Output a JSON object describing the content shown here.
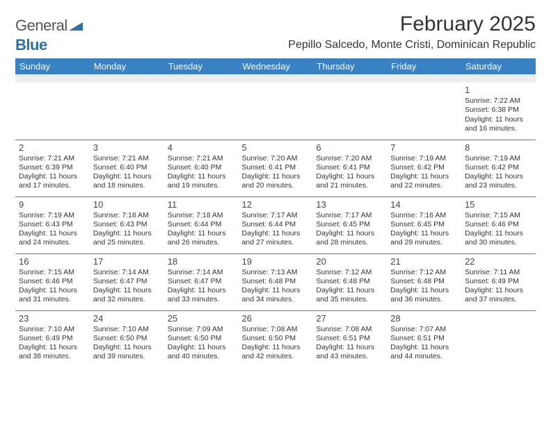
{
  "logo": {
    "word1": "General",
    "word2": "Blue"
  },
  "title": "February 2025",
  "location": "Pepillo Salcedo, Monte Cristi, Dominican Republic",
  "header_bg": "#3a81c4",
  "header_fg": "#ffffff",
  "rule_color": "#5a7a99",
  "blank_bg": "#eeeeee",
  "days": [
    "Sunday",
    "Monday",
    "Tuesday",
    "Wednesday",
    "Thursday",
    "Friday",
    "Saturday"
  ],
  "weeks": [
    [
      null,
      null,
      null,
      null,
      null,
      null,
      {
        "n": "1",
        "sr": "Sunrise: 7:22 AM",
        "ss": "Sunset: 6:38 PM",
        "dl": "Daylight: 11 hours and 16 minutes."
      }
    ],
    [
      {
        "n": "2",
        "sr": "Sunrise: 7:21 AM",
        "ss": "Sunset: 6:39 PM",
        "dl": "Daylight: 11 hours and 17 minutes."
      },
      {
        "n": "3",
        "sr": "Sunrise: 7:21 AM",
        "ss": "Sunset: 6:40 PM",
        "dl": "Daylight: 11 hours and 18 minutes."
      },
      {
        "n": "4",
        "sr": "Sunrise: 7:21 AM",
        "ss": "Sunset: 6:40 PM",
        "dl": "Daylight: 11 hours and 19 minutes."
      },
      {
        "n": "5",
        "sr": "Sunrise: 7:20 AM",
        "ss": "Sunset: 6:41 PM",
        "dl": "Daylight: 11 hours and 20 minutes."
      },
      {
        "n": "6",
        "sr": "Sunrise: 7:20 AM",
        "ss": "Sunset: 6:41 PM",
        "dl": "Daylight: 11 hours and 21 minutes."
      },
      {
        "n": "7",
        "sr": "Sunrise: 7:19 AM",
        "ss": "Sunset: 6:42 PM",
        "dl": "Daylight: 11 hours and 22 minutes."
      },
      {
        "n": "8",
        "sr": "Sunrise: 7:19 AM",
        "ss": "Sunset: 6:42 PM",
        "dl": "Daylight: 11 hours and 23 minutes."
      }
    ],
    [
      {
        "n": "9",
        "sr": "Sunrise: 7:19 AM",
        "ss": "Sunset: 6:43 PM",
        "dl": "Daylight: 11 hours and 24 minutes."
      },
      {
        "n": "10",
        "sr": "Sunrise: 7:18 AM",
        "ss": "Sunset: 6:43 PM",
        "dl": "Daylight: 11 hours and 25 minutes."
      },
      {
        "n": "11",
        "sr": "Sunrise: 7:18 AM",
        "ss": "Sunset: 6:44 PM",
        "dl": "Daylight: 11 hours and 26 minutes."
      },
      {
        "n": "12",
        "sr": "Sunrise: 7:17 AM",
        "ss": "Sunset: 6:44 PM",
        "dl": "Daylight: 11 hours and 27 minutes."
      },
      {
        "n": "13",
        "sr": "Sunrise: 7:17 AM",
        "ss": "Sunset: 6:45 PM",
        "dl": "Daylight: 11 hours and 28 minutes."
      },
      {
        "n": "14",
        "sr": "Sunrise: 7:16 AM",
        "ss": "Sunset: 6:45 PM",
        "dl": "Daylight: 11 hours and 29 minutes."
      },
      {
        "n": "15",
        "sr": "Sunrise: 7:15 AM",
        "ss": "Sunset: 6:46 PM",
        "dl": "Daylight: 11 hours and 30 minutes."
      }
    ],
    [
      {
        "n": "16",
        "sr": "Sunrise: 7:15 AM",
        "ss": "Sunset: 6:46 PM",
        "dl": "Daylight: 11 hours and 31 minutes."
      },
      {
        "n": "17",
        "sr": "Sunrise: 7:14 AM",
        "ss": "Sunset: 6:47 PM",
        "dl": "Daylight: 11 hours and 32 minutes."
      },
      {
        "n": "18",
        "sr": "Sunrise: 7:14 AM",
        "ss": "Sunset: 6:47 PM",
        "dl": "Daylight: 11 hours and 33 minutes."
      },
      {
        "n": "19",
        "sr": "Sunrise: 7:13 AM",
        "ss": "Sunset: 6:48 PM",
        "dl": "Daylight: 11 hours and 34 minutes."
      },
      {
        "n": "20",
        "sr": "Sunrise: 7:12 AM",
        "ss": "Sunset: 6:48 PM",
        "dl": "Daylight: 11 hours and 35 minutes."
      },
      {
        "n": "21",
        "sr": "Sunrise: 7:12 AM",
        "ss": "Sunset: 6:48 PM",
        "dl": "Daylight: 11 hours and 36 minutes."
      },
      {
        "n": "22",
        "sr": "Sunrise: 7:11 AM",
        "ss": "Sunset: 6:49 PM",
        "dl": "Daylight: 11 hours and 37 minutes."
      }
    ],
    [
      {
        "n": "23",
        "sr": "Sunrise: 7:10 AM",
        "ss": "Sunset: 6:49 PM",
        "dl": "Daylight: 11 hours and 38 minutes."
      },
      {
        "n": "24",
        "sr": "Sunrise: 7:10 AM",
        "ss": "Sunset: 6:50 PM",
        "dl": "Daylight: 11 hours and 39 minutes."
      },
      {
        "n": "25",
        "sr": "Sunrise: 7:09 AM",
        "ss": "Sunset: 6:50 PM",
        "dl": "Daylight: 11 hours and 40 minutes."
      },
      {
        "n": "26",
        "sr": "Sunrise: 7:08 AM",
        "ss": "Sunset: 6:50 PM",
        "dl": "Daylight: 11 hours and 42 minutes."
      },
      {
        "n": "27",
        "sr": "Sunrise: 7:08 AM",
        "ss": "Sunset: 6:51 PM",
        "dl": "Daylight: 11 hours and 43 minutes."
      },
      {
        "n": "28",
        "sr": "Sunrise: 7:07 AM",
        "ss": "Sunset: 6:51 PM",
        "dl": "Daylight: 11 hours and 44 minutes."
      },
      null
    ]
  ]
}
